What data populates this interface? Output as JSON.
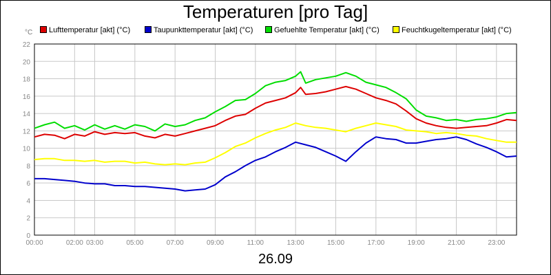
{
  "title": "Temperaturen [pro Tag]",
  "date_label": "26.09",
  "unit": "°C",
  "chart_data": {
    "type": "line",
    "title": "Temperaturen [pro Tag]",
    "xlabel": "26.09",
    "ylabel": "°C",
    "ylim": [
      0,
      22
    ],
    "xlim": [
      0,
      24
    ],
    "grid": true,
    "legend_position": "top",
    "y_ticks": [
      0,
      2,
      4,
      6,
      8,
      10,
      12,
      14,
      16,
      18,
      20,
      22
    ],
    "x_ticks": [
      {
        "x": 0,
        "label": "00:00"
      },
      {
        "x": 2,
        "label": "02:00"
      },
      {
        "x": 3,
        "label": "03:00"
      },
      {
        "x": 5,
        "label": "05:00"
      },
      {
        "x": 7,
        "label": "07:00"
      },
      {
        "x": 9,
        "label": "09:00"
      },
      {
        "x": 11,
        "label": "11:00"
      },
      {
        "x": 13,
        "label": "13:00"
      },
      {
        "x": 15,
        "label": "15:00"
      },
      {
        "x": 17,
        "label": "17:00"
      },
      {
        "x": 19,
        "label": "19:00"
      },
      {
        "x": 21,
        "label": "21:00"
      },
      {
        "x": 23,
        "label": "23:00"
      }
    ],
    "series": [
      {
        "name": "Lufttemperatur [akt] (°C)",
        "color": "#dd0000",
        "points": [
          [
            0,
            11.3
          ],
          [
            0.5,
            11.6
          ],
          [
            1,
            11.5
          ],
          [
            1.5,
            11.1
          ],
          [
            2,
            11.6
          ],
          [
            2.5,
            11.4
          ],
          [
            3,
            11.9
          ],
          [
            3.5,
            11.6
          ],
          [
            4,
            11.8
          ],
          [
            4.5,
            11.7
          ],
          [
            5,
            11.8
          ],
          [
            5.5,
            11.4
          ],
          [
            6,
            11.2
          ],
          [
            6.5,
            11.6
          ],
          [
            7,
            11.4
          ],
          [
            7.5,
            11.7
          ],
          [
            8,
            12.0
          ],
          [
            8.5,
            12.3
          ],
          [
            9,
            12.6
          ],
          [
            9.5,
            13.2
          ],
          [
            10,
            13.7
          ],
          [
            10.5,
            13.9
          ],
          [
            11,
            14.6
          ],
          [
            11.5,
            15.2
          ],
          [
            12,
            15.5
          ],
          [
            12.5,
            15.8
          ],
          [
            13,
            16.4
          ],
          [
            13.25,
            17.0
          ],
          [
            13.5,
            16.2
          ],
          [
            14,
            16.3
          ],
          [
            14.5,
            16.5
          ],
          [
            15,
            16.8
          ],
          [
            15.5,
            17.1
          ],
          [
            16,
            16.8
          ],
          [
            16.5,
            16.3
          ],
          [
            17,
            15.8
          ],
          [
            17.5,
            15.5
          ],
          [
            18,
            15.1
          ],
          [
            18.5,
            14.3
          ],
          [
            19,
            13.4
          ],
          [
            19.5,
            12.9
          ],
          [
            20,
            12.6
          ],
          [
            20.5,
            12.4
          ],
          [
            21,
            12.3
          ],
          [
            21.5,
            12.4
          ],
          [
            22,
            12.5
          ],
          [
            22.5,
            12.6
          ],
          [
            23,
            12.9
          ],
          [
            23.5,
            13.3
          ],
          [
            24,
            13.2
          ]
        ]
      },
      {
        "name": "Taupunkttemperatur [akt] (°C)",
        "color": "#0000cc",
        "points": [
          [
            0,
            6.5
          ],
          [
            0.5,
            6.5
          ],
          [
            1,
            6.4
          ],
          [
            1.5,
            6.3
          ],
          [
            2,
            6.2
          ],
          [
            2.5,
            6.0
          ],
          [
            3,
            5.9
          ],
          [
            3.5,
            5.9
          ],
          [
            4,
            5.7
          ],
          [
            4.5,
            5.7
          ],
          [
            5,
            5.6
          ],
          [
            5.5,
            5.6
          ],
          [
            6,
            5.5
          ],
          [
            6.5,
            5.4
          ],
          [
            7,
            5.3
          ],
          [
            7.5,
            5.1
          ],
          [
            8,
            5.2
          ],
          [
            8.5,
            5.3
          ],
          [
            9,
            5.8
          ],
          [
            9.5,
            6.7
          ],
          [
            10,
            7.3
          ],
          [
            10.5,
            8.0
          ],
          [
            11,
            8.6
          ],
          [
            11.5,
            9.0
          ],
          [
            12,
            9.6
          ],
          [
            12.5,
            10.1
          ],
          [
            13,
            10.7
          ],
          [
            13.5,
            10.4
          ],
          [
            14,
            10.1
          ],
          [
            14.5,
            9.6
          ],
          [
            15,
            9.1
          ],
          [
            15.5,
            8.5
          ],
          [
            16,
            9.6
          ],
          [
            16.5,
            10.6
          ],
          [
            17,
            11.3
          ],
          [
            17.5,
            11.1
          ],
          [
            18,
            11.0
          ],
          [
            18.5,
            10.6
          ],
          [
            19,
            10.6
          ],
          [
            19.5,
            10.8
          ],
          [
            20,
            11.0
          ],
          [
            20.5,
            11.1
          ],
          [
            21,
            11.3
          ],
          [
            21.5,
            11.0
          ],
          [
            22,
            10.5
          ],
          [
            22.5,
            10.1
          ],
          [
            23,
            9.6
          ],
          [
            23.5,
            9.0
          ],
          [
            24,
            9.1
          ]
        ]
      },
      {
        "name": "Gefuehlte Temperatur [akt] (°C)",
        "color": "#00dd00",
        "points": [
          [
            0,
            12.3
          ],
          [
            0.5,
            12.7
          ],
          [
            1,
            13.0
          ],
          [
            1.5,
            12.3
          ],
          [
            2,
            12.6
          ],
          [
            2.5,
            12.1
          ],
          [
            3,
            12.7
          ],
          [
            3.5,
            12.2
          ],
          [
            4,
            12.6
          ],
          [
            4.5,
            12.2
          ],
          [
            5,
            12.7
          ],
          [
            5.5,
            12.5
          ],
          [
            6,
            12.0
          ],
          [
            6.5,
            12.8
          ],
          [
            7,
            12.5
          ],
          [
            7.5,
            12.7
          ],
          [
            8,
            13.2
          ],
          [
            8.5,
            13.5
          ],
          [
            9,
            14.2
          ],
          [
            9.5,
            14.8
          ],
          [
            10,
            15.5
          ],
          [
            10.5,
            15.6
          ],
          [
            11,
            16.3
          ],
          [
            11.5,
            17.2
          ],
          [
            12,
            17.6
          ],
          [
            12.5,
            17.8
          ],
          [
            13,
            18.3
          ],
          [
            13.25,
            18.8
          ],
          [
            13.5,
            17.5
          ],
          [
            14,
            17.9
          ],
          [
            14.5,
            18.1
          ],
          [
            15,
            18.3
          ],
          [
            15.5,
            18.7
          ],
          [
            16,
            18.3
          ],
          [
            16.5,
            17.6
          ],
          [
            17,
            17.3
          ],
          [
            17.5,
            17.0
          ],
          [
            18,
            16.4
          ],
          [
            18.5,
            15.7
          ],
          [
            19,
            14.4
          ],
          [
            19.5,
            13.7
          ],
          [
            20,
            13.5
          ],
          [
            20.5,
            13.2
          ],
          [
            21,
            13.3
          ],
          [
            21.5,
            13.1
          ],
          [
            22,
            13.3
          ],
          [
            22.5,
            13.4
          ],
          [
            23,
            13.6
          ],
          [
            23.5,
            14.0
          ],
          [
            24,
            14.1
          ]
        ]
      },
      {
        "name": "Feuchtkugeltemperatur [akt] (°C)",
        "color": "#ffff00",
        "points": [
          [
            0,
            8.7
          ],
          [
            0.5,
            8.8
          ],
          [
            1,
            8.8
          ],
          [
            1.5,
            8.6
          ],
          [
            2,
            8.6
          ],
          [
            2.5,
            8.5
          ],
          [
            3,
            8.6
          ],
          [
            3.5,
            8.4
          ],
          [
            4,
            8.5
          ],
          [
            4.5,
            8.5
          ],
          [
            5,
            8.3
          ],
          [
            5.5,
            8.4
          ],
          [
            6,
            8.2
          ],
          [
            6.5,
            8.1
          ],
          [
            7,
            8.2
          ],
          [
            7.5,
            8.1
          ],
          [
            8,
            8.3
          ],
          [
            8.5,
            8.4
          ],
          [
            9,
            8.9
          ],
          [
            9.5,
            9.5
          ],
          [
            10,
            10.2
          ],
          [
            10.5,
            10.6
          ],
          [
            11,
            11.2
          ],
          [
            11.5,
            11.7
          ],
          [
            12,
            12.1
          ],
          [
            12.5,
            12.4
          ],
          [
            13,
            12.9
          ],
          [
            13.5,
            12.6
          ],
          [
            14,
            12.4
          ],
          [
            14.5,
            12.3
          ],
          [
            15,
            12.1
          ],
          [
            15.5,
            11.9
          ],
          [
            16,
            12.3
          ],
          [
            16.5,
            12.6
          ],
          [
            17,
            12.9
          ],
          [
            17.5,
            12.7
          ],
          [
            18,
            12.5
          ],
          [
            18.5,
            12.1
          ],
          [
            19,
            12.0
          ],
          [
            19.5,
            11.9
          ],
          [
            20,
            11.7
          ],
          [
            20.5,
            11.8
          ],
          [
            21,
            11.7
          ],
          [
            21.5,
            11.5
          ],
          [
            22,
            11.4
          ],
          [
            22.5,
            11.1
          ],
          [
            23,
            10.9
          ],
          [
            23.5,
            10.7
          ],
          [
            24,
            10.7
          ]
        ]
      }
    ]
  }
}
